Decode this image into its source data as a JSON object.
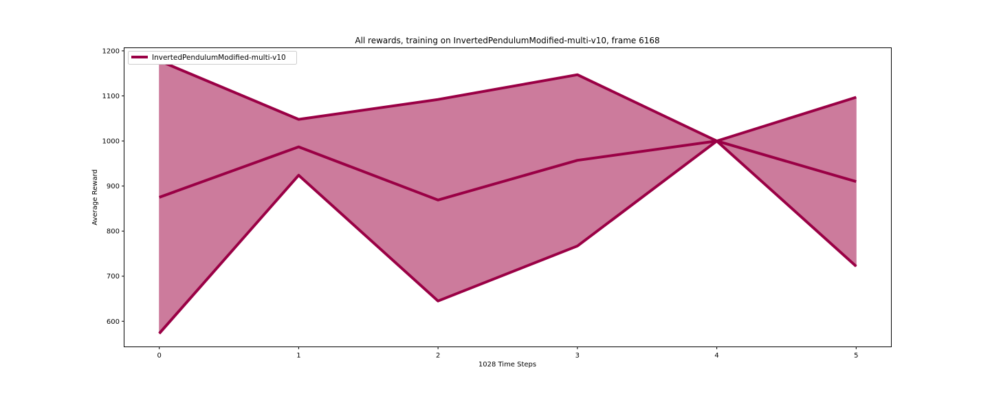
{
  "chart_data": {
    "type": "line",
    "title": "All rewards, training on InvertedPendulumModified-multi-v10, frame 6168",
    "xlabel": "1028 Time Steps",
    "ylabel": "Average Reward",
    "x": [
      0,
      1,
      2,
      3,
      4,
      5
    ],
    "xticks": [
      "0",
      "1",
      "2",
      "3",
      "4",
      "5"
    ],
    "yticks": [
      "600",
      "700",
      "800",
      "900",
      "1000",
      "1100",
      "1200"
    ],
    "xlim": [
      -0.25,
      5.25
    ],
    "ylim": [
      544,
      1206
    ],
    "series": [
      {
        "name": "InvertedPendulumModified-multi-v10",
        "mean": [
          875,
          987,
          869,
          957,
          1000,
          910
        ],
        "max": [
          1178,
          1048,
          1092,
          1147,
          1000,
          1097
        ],
        "min": [
          573,
          924,
          645,
          767,
          1000,
          722
        ]
      }
    ],
    "legend": "upper-left",
    "grid": false,
    "colors": {
      "line": "#9a0045",
      "fill": "#cc7b9c"
    }
  }
}
